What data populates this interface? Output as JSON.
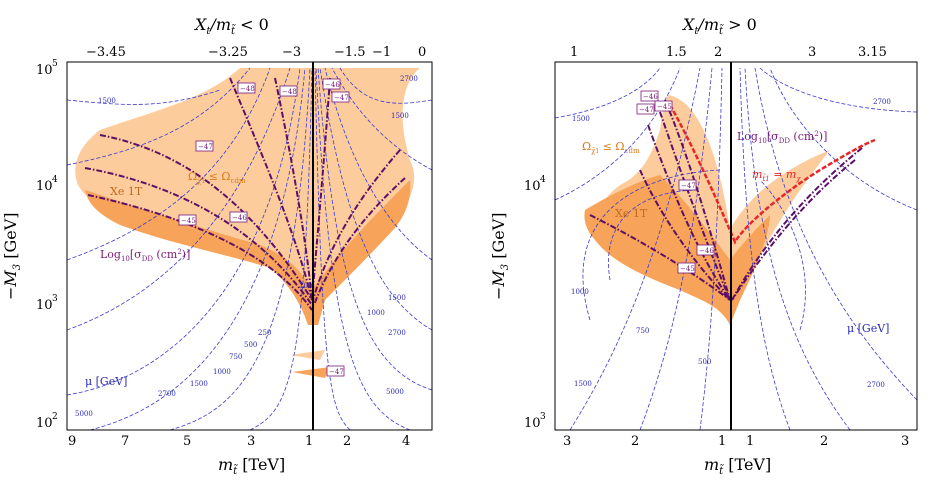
{
  "chart_data": [
    {
      "type": "contour",
      "panel": "left",
      "top_axis_title": "X_t/m_t̃ < 0",
      "top_ticks": [
        "−3.45",
        "−3.25",
        "−3",
        "−1.5",
        "−1",
        "0"
      ],
      "bottom_axis_title": "m_t̃ [TeV]",
      "bottom_ticks": [
        "9",
        "7",
        "5",
        "3",
        "1",
        "2",
        "4"
      ],
      "y_axis_title": "−M_3 [GeV]",
      "y_ticks": [
        {
          "base": "10",
          "exp": "2"
        },
        {
          "base": "10",
          "exp": "3"
        },
        {
          "base": "10",
          "exp": "4"
        },
        {
          "base": "10",
          "exp": "5"
        }
      ],
      "ylim": [
        100,
        100000
      ],
      "annotations": {
        "relic": "Ω_χ̃1 ≤ Ω_cdm",
        "xe": "Xe 1T",
        "dd": "Log10[σ_DD (cm²)]",
        "mu": "μ [GeV]"
      },
      "dd_contour_labels": [
        "−48",
        "−48",
        "−46",
        "−47",
        "−47",
        "−45",
        "−46",
        "−47"
      ],
      "mu_contour_labels": [
        "1500",
        "2700",
        "1500",
        "1000",
        "1500",
        "2700",
        "100",
        "250",
        "500",
        "750",
        "1000",
        "1500",
        "2700",
        "5000",
        "5000"
      ]
    },
    {
      "type": "contour",
      "panel": "right",
      "top_axis_title": "X_t/m_t̃ > 0",
      "top_ticks": [
        "1",
        "1.5",
        "2",
        "3",
        "3.15"
      ],
      "bottom_axis_title": "m_t̃ [TeV]",
      "bottom_ticks": [
        "3",
        "2",
        "1",
        "1",
        "2",
        "3"
      ],
      "y_axis_title": "−M_3 [GeV]",
      "y_ticks": [
        {
          "base": "10",
          "exp": "3"
        },
        {
          "base": "10",
          "exp": "4"
        }
      ],
      "ylim": [
        900,
        40000
      ],
      "annotations": {
        "relic": "Ω_χ̃1 ≤ Ω_cdm",
        "xe": "Xe 1T",
        "dd": "Log10[σ_DD (cm²)]",
        "mu": "μ [GeV]",
        "mass": "m_t̃1 = m_χ"
      },
      "dd_contour_labels": [
        "−46",
        "−47",
        "−45",
        "−47",
        "−46",
        "−45"
      ],
      "mu_contour_labels": [
        "1500",
        "2700",
        "1000",
        "750",
        "500",
        "1500",
        "2700"
      ]
    }
  ],
  "colors": {
    "light_region": "#fdcc9c",
    "dark_region": "#f8a35a",
    "mu_contour": "#3a3ad0",
    "dd_contour": "#5c0f66",
    "mass_line": "#e8262a"
  },
  "labels": {
    "left_top_title": "X",
    "left_top_sub": "t",
    "left_top_den": "/m",
    "left_top_cmp": " < 0",
    "right_top_cmp": " > 0",
    "tilde_t": "t̃",
    "ylab_minus": "−M",
    "ylab_sub": "3",
    "ylab_unit": " [GeV]",
    "xlab_m": "m",
    "xlab_unit": " [TeV]",
    "relic_omega": "Ω",
    "relic_sub": "χ̃",
    "relic_sub1": "1",
    "relic_le": " ≤ Ω",
    "relic_cdm": "cdm",
    "xe": "Xe 1T",
    "dd_log": "Log",
    "dd_10": "10",
    "dd_sigma": "[σ",
    "dd_sub": "DD",
    "dd_units": " (cm",
    "dd_sq": "2",
    "dd_close": ")]",
    "mu": "μ [GeV]",
    "mass_m": "m",
    "mass_sub": "t̃1",
    "mass_eq": " = m",
    "mass_chi": "χ"
  }
}
